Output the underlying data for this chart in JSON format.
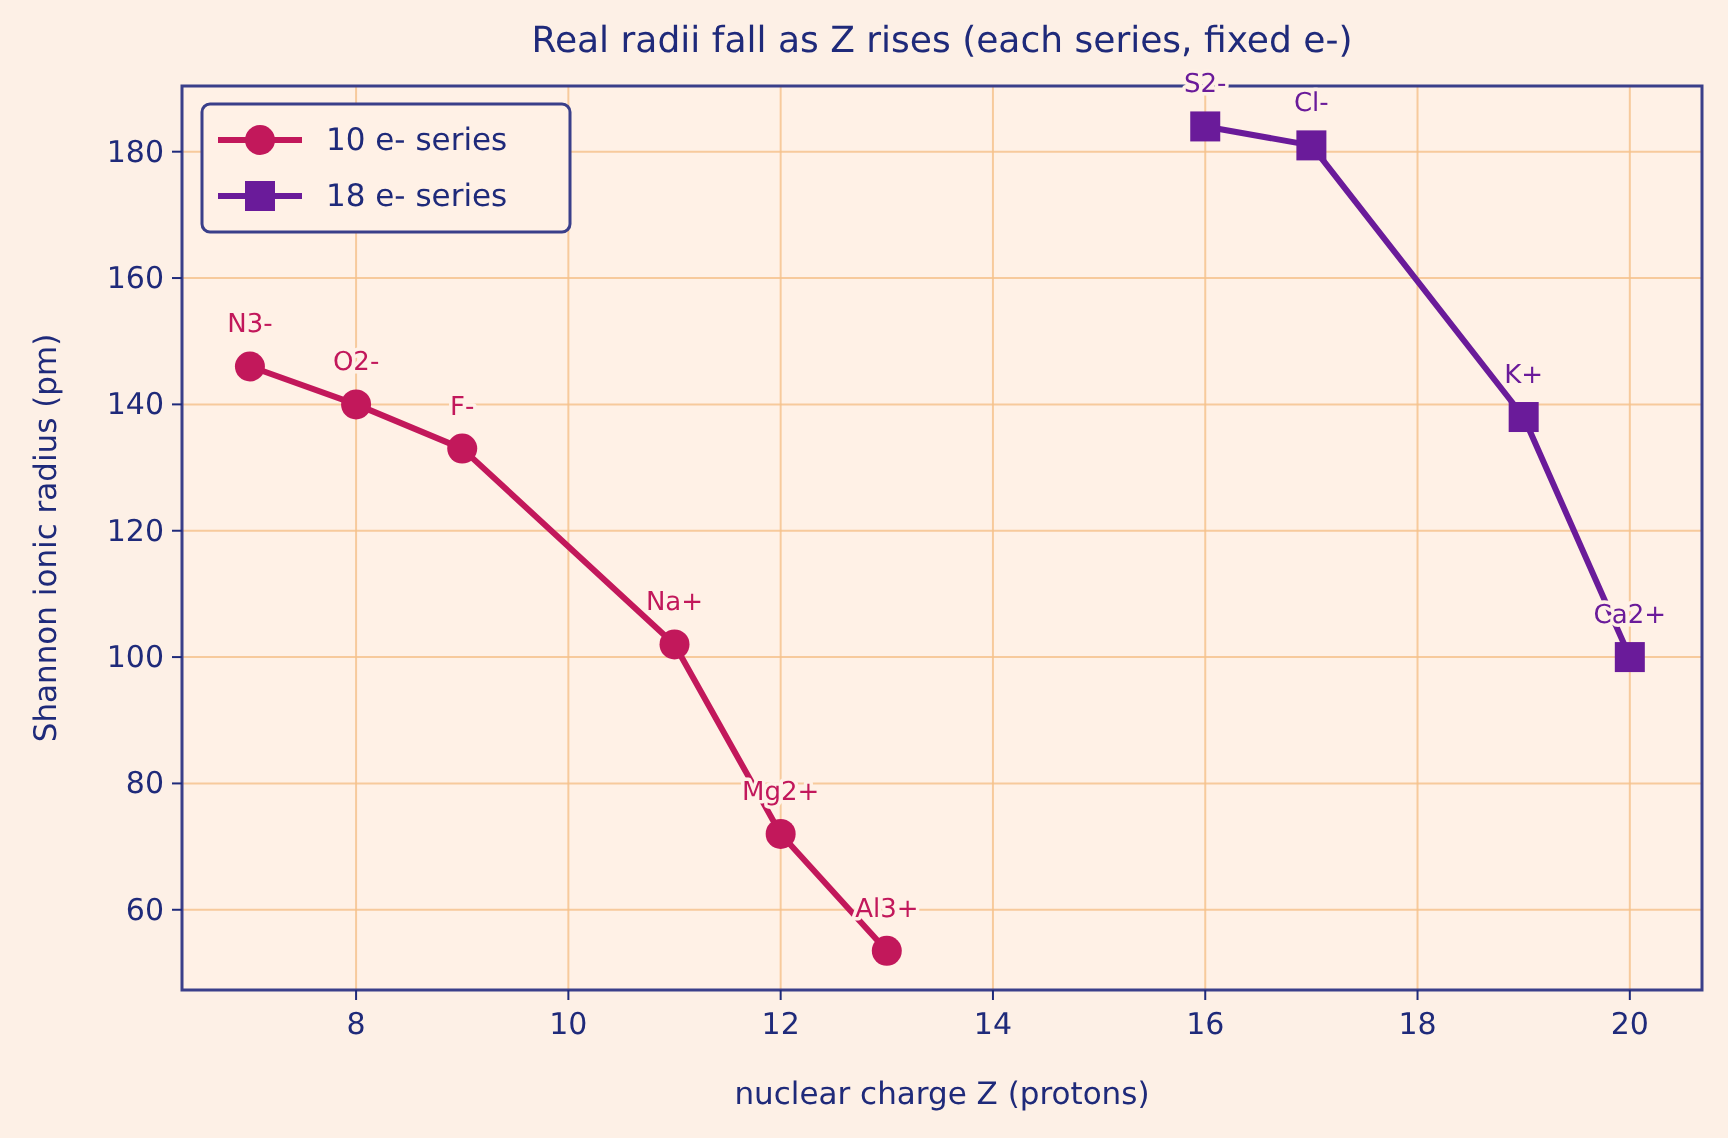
{
  "chart_data": {
    "type": "line",
    "title": "Real radii fall as Z rises (each series, fixed e-)",
    "xlabel": "nuclear charge  Z  (protons)",
    "ylabel": "Shannon ionic radius  (pm)",
    "series": [
      {
        "name": "10 e- series",
        "color": "#c2185b",
        "marker": "circle",
        "x": [
          7,
          8,
          9,
          11,
          12,
          13
        ],
        "values": [
          146,
          140,
          133,
          102,
          72,
          53.5
        ]
      },
      {
        "name": "18 e- series",
        "color": "#6a1b9a",
        "marker": "square",
        "x": [
          16,
          17,
          19,
          20
        ],
        "values": [
          184,
          181,
          138,
          100
        ]
      }
    ],
    "annotations": [
      {
        "text": "N3-",
        "x": 7,
        "y": 146
      },
      {
        "text": "O2-",
        "x": 8,
        "y": 140
      },
      {
        "text": "F-",
        "x": 9,
        "y": 133
      },
      {
        "text": "Na+",
        "x": 11,
        "y": 102
      },
      {
        "text": "Mg2+",
        "x": 12,
        "y": 72
      },
      {
        "text": "Al3+",
        "x": 13,
        "y": 53.5
      },
      {
        "text": "S2-",
        "x": 16,
        "y": 184
      },
      {
        "text": "Cl-",
        "x": 17,
        "y": 181
      },
      {
        "text": "K+",
        "x": 19,
        "y": 138
      },
      {
        "text": "Ca2+",
        "x": 20,
        "y": 100
      }
    ],
    "xlim": [
      6.36,
      20.68
    ],
    "ylim": [
      47.3,
      190.4
    ],
    "xticks": [
      8,
      10,
      12,
      14,
      16,
      18,
      20
    ],
    "yticks": [
      60,
      80,
      100,
      120,
      140,
      160,
      180
    ],
    "grid": true,
    "legend": "top left",
    "line_style": "solid"
  }
}
